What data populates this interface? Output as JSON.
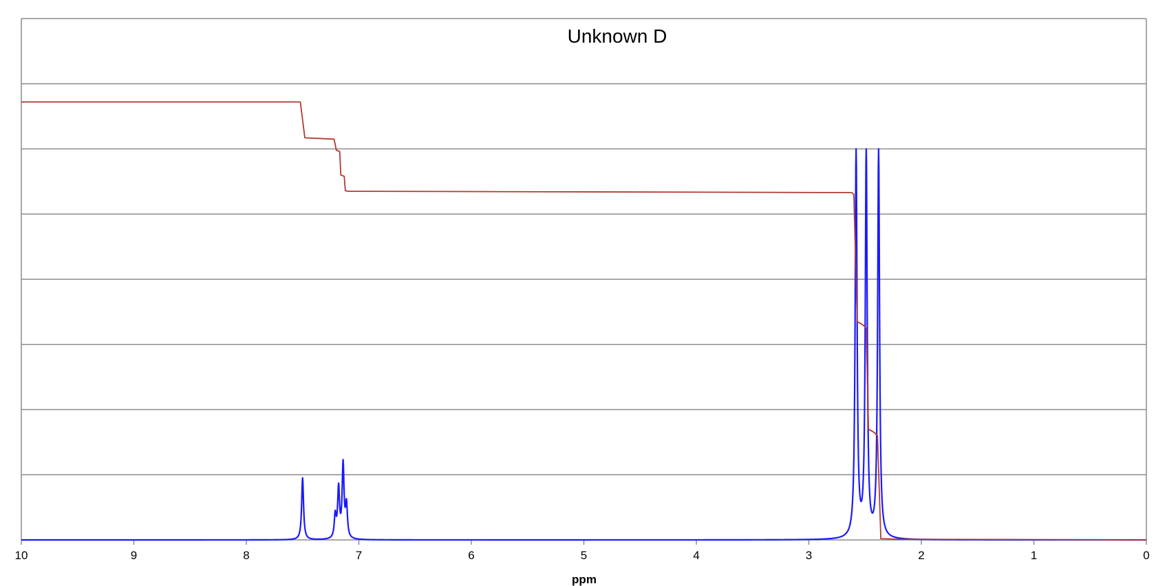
{
  "chart_data": {
    "type": "line",
    "title": "Unknown D",
    "xlabel": "ppm",
    "ylabel": "",
    "xlim": [
      10,
      0
    ],
    "x_reversed": true,
    "ylim": [
      0,
      8
    ],
    "xticks": [
      "10",
      "9",
      "8",
      "7",
      "6",
      "5",
      "4",
      "3",
      "2",
      "1",
      "0"
    ],
    "grid": true,
    "legend": "none",
    "series": [
      {
        "kind": "spectrum",
        "color": "#1a1aff",
        "linewidth": 0.01,
        "peaks": [
          {
            "ppm": 7.5,
            "height": 0.95
          },
          {
            "ppm": 7.21,
            "height": 0.35
          },
          {
            "ppm": 7.18,
            "height": 0.76
          },
          {
            "ppm": 7.14,
            "height": 1.13
          },
          {
            "ppm": 7.11,
            "height": 0.5
          },
          {
            "ppm": 2.58,
            "height": 6.0
          },
          {
            "ppm": 2.49,
            "height": 6.0
          },
          {
            "ppm": 2.38,
            "height": 6.0
          }
        ]
      },
      {
        "kind": "integral",
        "color": "#b03a30",
        "points": [
          [
            10.0,
            6.72
          ],
          [
            7.52,
            6.72
          ],
          [
            7.48,
            6.17
          ],
          [
            7.22,
            6.15
          ],
          [
            7.2,
            5.98
          ],
          [
            7.17,
            5.96
          ],
          [
            7.16,
            5.6
          ],
          [
            7.13,
            5.58
          ],
          [
            7.12,
            5.36
          ],
          [
            7.1,
            5.35
          ],
          [
            7.05,
            5.35
          ],
          [
            2.62,
            5.33
          ],
          [
            2.6,
            5.3
          ],
          [
            2.57,
            3.35
          ],
          [
            2.52,
            3.3
          ],
          [
            2.49,
            3.25
          ],
          [
            2.47,
            1.7
          ],
          [
            2.42,
            1.65
          ],
          [
            2.39,
            1.6
          ],
          [
            2.36,
            0.02
          ],
          [
            2.2,
            0.01
          ],
          [
            0.0,
            0.0
          ]
        ]
      }
    ]
  }
}
